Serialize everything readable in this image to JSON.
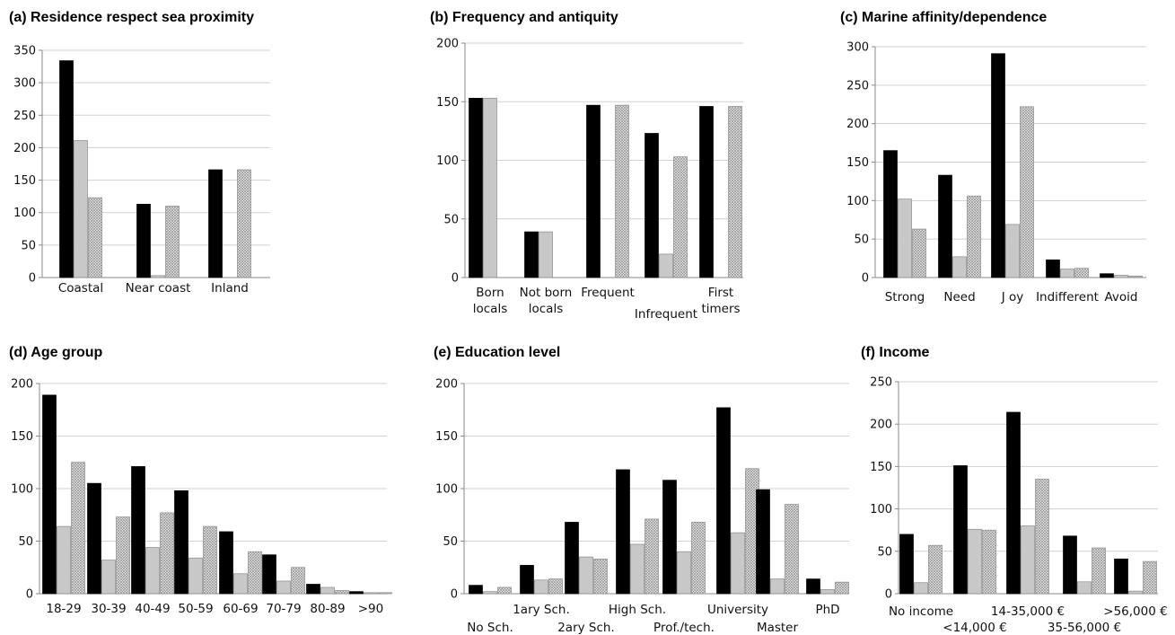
{
  "figure": {
    "colors": {
      "series_1": "#000000",
      "series_2": "#c8c8c8",
      "series_3": "hatched-light-grey",
      "grid": "#d0d0d0",
      "axis": "#888888"
    }
  },
  "chart_data": [
    {
      "type": "bar",
      "title": "(a) Residence respect sea proximity",
      "categories": [
        "Coastal",
        "Near coast",
        "Inland"
      ],
      "series": [
        {
          "values": [
            334,
            113,
            166
          ]
        },
        {
          "values": [
            211,
            3,
            0
          ]
        },
        {
          "values": [
            123,
            110,
            166
          ]
        }
      ],
      "ylim": [
        0,
        350
      ],
      "yticks": [
        0,
        50,
        100,
        150,
        200,
        250,
        300,
        350
      ],
      "grid": true
    },
    {
      "type": "bar",
      "title": "(b) Frequency and antiquity",
      "categories": [
        "Born locals",
        "Not born locals",
        "Frequent",
        "Infrequent",
        "First timers"
      ],
      "series": [
        {
          "values": [
            153,
            39,
            147,
            123,
            146
          ]
        },
        {
          "values": [
            153,
            39,
            0,
            20,
            0
          ]
        },
        {
          "values": [
            0,
            0,
            147,
            103,
            146
          ]
        }
      ],
      "ylim": [
        0,
        200
      ],
      "yticks": [
        0,
        50,
        100,
        150,
        200
      ],
      "grid": true
    },
    {
      "type": "bar",
      "title": "(c) Marine affinity/dependence",
      "categories": [
        "Strong",
        "Need",
        "J oy",
        "Indifferent",
        "Avoid"
      ],
      "series": [
        {
          "values": [
            165,
            133,
            291,
            23,
            5
          ]
        },
        {
          "values": [
            102,
            27,
            69,
            11,
            3
          ]
        },
        {
          "values": [
            63,
            106,
            222,
            12,
            2
          ]
        }
      ],
      "ylim": [
        0,
        300
      ],
      "yticks": [
        0,
        50,
        100,
        150,
        200,
        250,
        300
      ],
      "grid": true
    },
    {
      "type": "bar",
      "title": "(d) Age group",
      "categories": [
        "18-29",
        "30-39",
        "40-49",
        "50-59",
        "60-69",
        "70-79",
        "80-89",
        ">90"
      ],
      "series": [
        {
          "values": [
            189,
            105,
            121,
            98,
            59,
            37,
            9,
            2
          ]
        },
        {
          "values": [
            64,
            32,
            44,
            34,
            19,
            12,
            6,
            1
          ]
        },
        {
          "values": [
            125,
            73,
            77,
            64,
            40,
            25,
            3,
            1
          ]
        }
      ],
      "ylim": [
        0,
        200
      ],
      "yticks": [
        0,
        50,
        100,
        150,
        200
      ],
      "grid": true
    },
    {
      "type": "bar",
      "title": "(e) Education level",
      "categories": [
        "No Sch.",
        "1ary Sch.",
        "2ary Sch.",
        "High Sch.",
        "Prof./tech.",
        "University",
        "Master",
        "PhD"
      ],
      "series": [
        {
          "values": [
            8,
            27,
            68,
            118,
            108,
            177,
            99,
            14
          ]
        },
        {
          "values": [
            2,
            13,
            35,
            47,
            40,
            58,
            14,
            4
          ]
        },
        {
          "values": [
            6,
            14,
            33,
            71,
            68,
            119,
            85,
            11
          ]
        }
      ],
      "ylim": [
        0,
        200
      ],
      "yticks": [
        0,
        50,
        100,
        150,
        200
      ],
      "grid": true
    },
    {
      "type": "bar",
      "title": "(f) Income",
      "categories": [
        "No income",
        "<14,000 €",
        "14-35,000 €",
        "35-56,000 €",
        ">56,000 €"
      ],
      "series": [
        {
          "values": [
            70,
            151,
            214,
            68,
            41
          ]
        },
        {
          "values": [
            13,
            76,
            80,
            14,
            3
          ]
        },
        {
          "values": [
            57,
            75,
            135,
            54,
            38
          ]
        }
      ],
      "ylim": [
        0,
        250
      ],
      "yticks": [
        0,
        50,
        100,
        150,
        200,
        250
      ],
      "grid": true
    }
  ]
}
